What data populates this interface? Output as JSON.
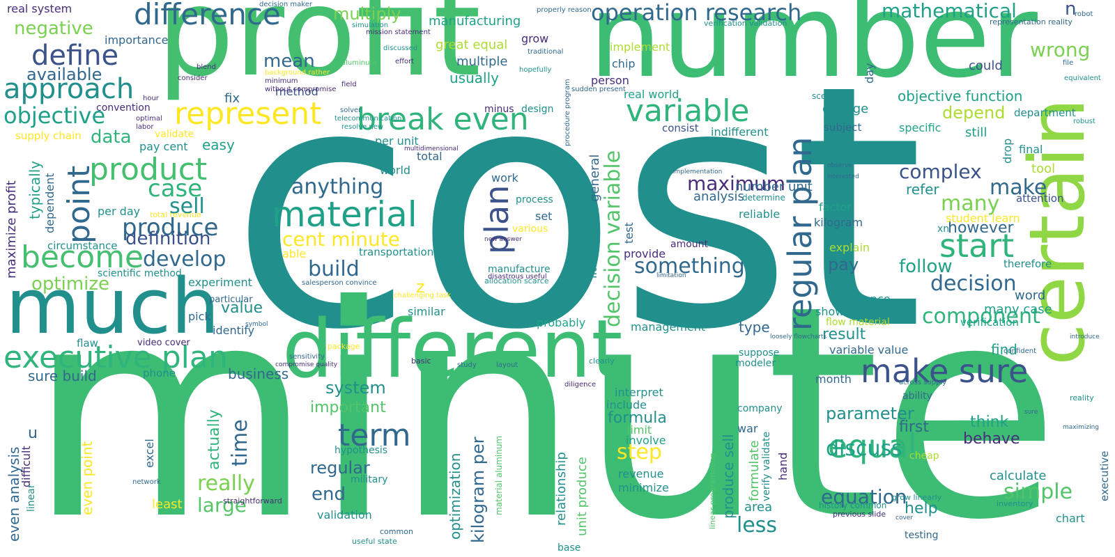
{
  "palette": {
    "teal": "#21908d",
    "green": "#44bf70",
    "lime": "#addc30",
    "yellow": "#fde725",
    "navy": "#3b528b",
    "purple": "#472d7b",
    "blue": "#31688e",
    "aqua": "#1fa188",
    "mint": "#5ec962",
    "deep": "#440154"
  },
  "words": {
    "cost": "cost",
    "minute": "minute",
    "profit": "profit",
    "number": "number",
    "certain": "certain",
    "different": "different",
    "much": "much",
    "difference": "difference",
    "operation_research": "operation research",
    "mathematical": "mathematical",
    "n": "n",
    "wrong": "wrong",
    "define": "define",
    "approach": "approach",
    "negative": "negative",
    "objective": "objective",
    "available": "available",
    "represent": "represent",
    "break_even": "break even",
    "variable": "variable",
    "product": "product",
    "point": "point",
    "material": "material",
    "regular_plan": "regular plan",
    "plan": "plan",
    "become": "become",
    "executive_plan": "executive plan",
    "make_sure": "make sure",
    "start": "start",
    "decision_variable": "decision variable",
    "maximum": "maximum",
    "something": "something",
    "anything": "anything",
    "complex": "complex",
    "make": "make",
    "many": "many",
    "decision": "decision",
    "follow": "follow",
    "component": "component",
    "equal": "equal",
    "term": "term",
    "simple": "simple",
    "discuss": "discuss",
    "equation": "equation",
    "less": "less",
    "step": "step",
    "really": "really",
    "large": "large",
    "build": "build",
    "sell": "sell",
    "case": "case",
    "produce": "produce",
    "develop": "develop",
    "definition": "definition",
    "optimize": "optimize",
    "cent_minute": "cent minute",
    "data": "data",
    "mean": "mean",
    "multiply": "multiply",
    "manufacturing": "manufacturing",
    "great_equal": "great equal",
    "multiple": "multiple",
    "usually": "usually",
    "implement": "implement",
    "chip": "chip",
    "person": "person",
    "real_world": "real world",
    "objective_function": "objective function",
    "depend": "depend",
    "department": "department",
    "specific": "specific",
    "still": "still",
    "could": "could",
    "change": "change",
    "consist": "consist",
    "indifferent": "indifferent",
    "subject": "subject",
    "however": "however",
    "refer": "refer",
    "pay": "pay",
    "explain": "explain",
    "attention": "attention",
    "therefore": "therefore",
    "number_unit": "number unit",
    "analysis": "analysis",
    "kilogram": "kilogram",
    "reliable": "reliable",
    "factor": "factor",
    "confidence": "confidence",
    "show": "show",
    "result": "result",
    "variable_value": "variable value",
    "find": "find",
    "verification": "verification",
    "many_case": "many case",
    "word": "word",
    "z": "z",
    "fix": "fix",
    "method": "method",
    "convention": "convention",
    "supply_chain": "supply chain",
    "validate": "validate",
    "pay_cent": "pay cent",
    "easy": "easy",
    "per_unit": "per unit",
    "total": "total",
    "world": "world",
    "transportation": "transportation",
    "able": "able",
    "per_day": "per day",
    "circumstance": "circumstance",
    "scientific_method": "scientific method",
    "experiment": "experiment",
    "value": "value",
    "pick": "pick",
    "identify": "identify",
    "management": "management",
    "type": "type",
    "probably": "probably",
    "similar": "similar",
    "video_cover": "video cover",
    "business": "business",
    "sure_build": "sure build",
    "system": "system",
    "important": "important",
    "regular": "regular",
    "end": "end",
    "validation": "validation",
    "hypothesis": "hypothesis",
    "military": "military",
    "time": "time",
    "actually": "actually",
    "formula": "formula",
    "include": "include",
    "interpret": "interpret",
    "limit": "limit",
    "involve": "involve",
    "revenue": "revenue",
    "minimize": "minimize",
    "parameter": "parameter",
    "first": "first",
    "think": "think",
    "behave": "behave",
    "calculate": "calculate",
    "help": "help",
    "chart": "chart",
    "maximize_profit": "maximize profit",
    "typically": "typically",
    "dependent": "dependent",
    "even_analysis": "even analysis",
    "difficult": "difficult",
    "linear": "linear",
    "even_point": "even point",
    "u": "u",
    "excel": "excel",
    "least": "least",
    "importance": "importance",
    "real_system": "real system",
    "general": "general",
    "little_bit": "little bit",
    "optimization": "optimization",
    "kilogram_per": "kilogram per",
    "unit_produce": "unit produce",
    "relationship": "relationship",
    "produce_sell": "produce sell",
    "formulate": "formulate",
    "area": "area",
    "war": "war",
    "verify_validate": "verify validate",
    "hand": "hand",
    "company": "company",
    "executive": "executive",
    "test": "test",
    "provide": "provide",
    "amount": "amount",
    "month": "month",
    "suppose": "suppose",
    "modeler": "modeler",
    "work": "work",
    "process": "process",
    "set": "set",
    "various": "various",
    "manufacture": "manufacture",
    "grow": "grow",
    "minus": "minus",
    "design": "design",
    "flow_material": "flow material",
    "tool": "tool",
    "final": "final",
    "drop": "drop",
    "student_learn": "student learn",
    "xn": "xn",
    "determine": "determine",
    "day": "day",
    "scenario": "scenario",
    "ability": "ability",
    "testing": "testing",
    "inventory": "inventory",
    "history_common": "history common",
    "grow_linearly": "grow linearly",
    "previous_slide": "previous slide",
    "cheap": "cheap",
    "base": "base",
    "useful_state": "useful state",
    "common": "common",
    "allocation_scarce": "allocation scarce",
    "straightforward": "straightforward",
    "particular": "particular",
    "flaw": "flaw",
    "phone": "phone",
    "total_revenue": "total revenue",
    "material_aluminum": "material aluminum",
    "linear_programming": "linear programming",
    "network": "network",
    "reality": "reality",
    "robust": "robust",
    "equivalent": "equivalent",
    "file": "file",
    "robot": "robot",
    "traditional": "traditional",
    "hopefully": "hopefully",
    "simulation": "simulation",
    "representation_reality": "representation reality",
    "verification_validation": "verification validation",
    "decision_maker": "decision maker",
    "background_rather": "background rather",
    "minimum": "minimum",
    "without_compromise": "without compromise",
    "consider": "consider",
    "hour": "hour",
    "optimal": "optimal",
    "labor": "labor",
    "blend": "blend",
    "effort": "effort",
    "field": "field",
    "discussed": "discussed",
    "aluminum": "aluminum",
    "procedure_program": "procedure program",
    "new_answer": "new answer",
    "sudden_present": "sudden present",
    "solver": "solver",
    "telecommunication": "telecommunication",
    "resolve_new": "resolve new",
    "multidimensional": "multidimensional",
    "disastrous_useful": "disastrous useful",
    "salesperson_convince": "salesperson convince",
    "challenging_task": "challenging task",
    "mission_statement": "mission statement",
    "properly_reason": "properly reason",
    "grow_linearly_small": "sure",
    "across_supply": "across supply",
    "confident": "confident",
    "introduce": "introduce",
    "maximizing": "maximizing",
    "cover": "cover",
    "package": "package",
    "diligence": "diligence",
    "implementation": "implementation",
    "interested": "interested",
    "observe": "observe",
    "limitation": "limitation",
    "loosely_flowcharts": "loosely flowcharts",
    "clearly": "clearly",
    "layout": "layout",
    "basic": "basic",
    "study": "study",
    "sensitivity": "sensitivity",
    "compromise_quality": "compromise quality",
    "decision_variable_small": "symbol"
  }
}
